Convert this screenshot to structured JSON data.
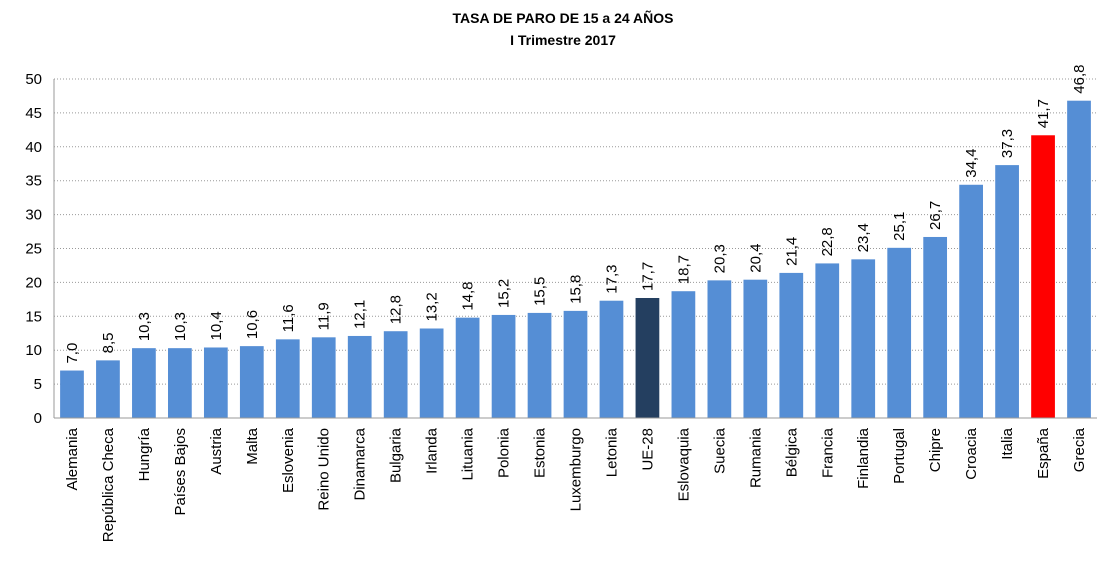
{
  "chart_data": {
    "type": "bar",
    "title": "TASA DE PARO DE 15 a 24 AÑOS",
    "subtitle": "I Trimestre 2017",
    "categories": [
      "Alemania",
      "República Checa",
      "Hungría",
      "Países Bajos",
      "Austria",
      "Malta",
      "Eslovenia",
      "Reino Unido",
      "Dinamarca",
      "Bulgaria",
      "Irlanda",
      "Lituania",
      "Polonia",
      "Estonia",
      "Luxemburgo",
      "Letonia",
      "UE-28",
      "Eslovaquia",
      "Suecia",
      "Rumania",
      "Bélgica",
      "Francia",
      "Finlandia",
      "Portugal",
      "Chipre",
      "Croacia",
      "Italia",
      "España",
      "Grecia"
    ],
    "values": [
      7.0,
      8.5,
      10.3,
      10.3,
      10.4,
      10.6,
      11.6,
      11.9,
      12.1,
      12.8,
      13.2,
      14.8,
      15.2,
      15.5,
      15.8,
      17.3,
      17.7,
      18.7,
      20.3,
      20.4,
      21.4,
      22.8,
      23.4,
      25.1,
      26.7,
      34.4,
      37.3,
      41.7,
      46.8
    ],
    "value_labels": [
      "7,0",
      "8,5",
      "10,3",
      "10,3",
      "10,4",
      "10,6",
      "11,6",
      "11,9",
      "12,1",
      "12,8",
      "13,2",
      "14,8",
      "15,2",
      "15,5",
      "15,8",
      "17,3",
      "17,7",
      "18,7",
      "20,3",
      "20,4",
      "21,4",
      "22,8",
      "23,4",
      "25,1",
      "26,7",
      "34,4",
      "37,3",
      "41,7",
      "46,8"
    ],
    "colors": [
      "#558ed5",
      "#558ed5",
      "#558ed5",
      "#558ed5",
      "#558ed5",
      "#558ed5",
      "#558ed5",
      "#558ed5",
      "#558ed5",
      "#558ed5",
      "#558ed5",
      "#558ed5",
      "#558ed5",
      "#558ed5",
      "#558ed5",
      "#558ed5",
      "#243f60",
      "#558ed5",
      "#558ed5",
      "#558ed5",
      "#558ed5",
      "#558ed5",
      "#558ed5",
      "#558ed5",
      "#558ed5",
      "#558ed5",
      "#558ed5",
      "#ff0000",
      "#558ed5"
    ],
    "ylim": [
      0,
      50
    ],
    "yticks": [
      0,
      5,
      10,
      15,
      20,
      25,
      30,
      35,
      40,
      45,
      50
    ],
    "grid": true
  }
}
